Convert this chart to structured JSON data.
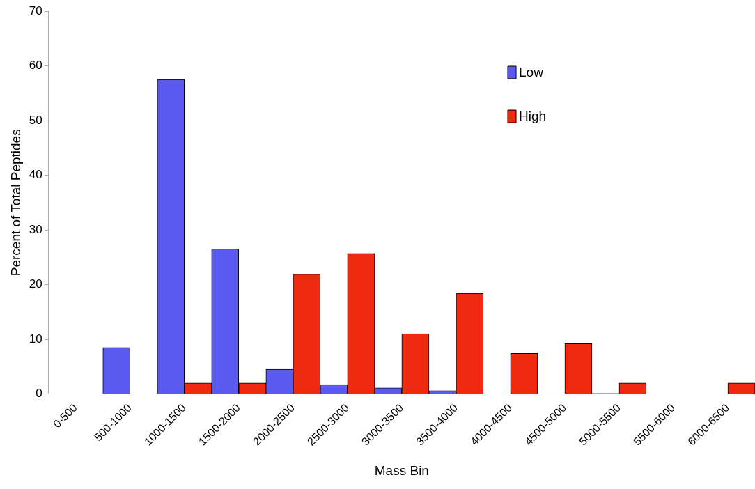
{
  "chart_data": {
    "type": "bar",
    "xlabel": "Mass Bin",
    "ylabel": "Percent of Total Peptides",
    "categories": [
      "0-500",
      "500-1000",
      "1000-1500",
      "1500-2000",
      "2000-2500",
      "2500-3000",
      "3000-3500",
      "3500-4000",
      "4000-4500",
      "4500-5000",
      "5000-5500",
      "5500-6000",
      "6000-6500"
    ],
    "series": [
      {
        "name": "Low",
        "color": "#5a5af0",
        "values": [
          0,
          8.5,
          57.5,
          26.5,
          4.5,
          1.7,
          1.1,
          0.6,
          0,
          0,
          0.1,
          0,
          0
        ]
      },
      {
        "name": "High",
        "color": "#ee2a10",
        "values": [
          0,
          0,
          2,
          2,
          21.9,
          25.7,
          11,
          18.4,
          7.4,
          9.2,
          2,
          0,
          2
        ]
      }
    ],
    "ylim": [
      0,
      70
    ],
    "yticks": [
      0,
      10,
      20,
      30,
      40,
      50,
      60,
      70
    ],
    "grid": false,
    "legend": "top right"
  }
}
